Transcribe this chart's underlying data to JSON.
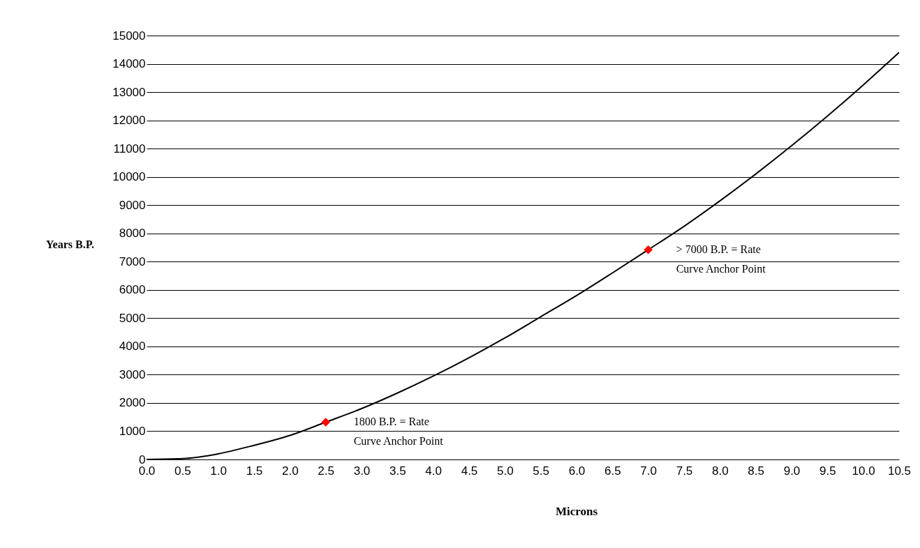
{
  "chart_data": {
    "type": "line",
    "xlabel": "Microns",
    "ylabel": "Years B.P.",
    "xlim": [
      0,
      10.5
    ],
    "xticks": [
      {
        "value": 0,
        "label": "0.0"
      },
      {
        "value": 0.5,
        "label": "0.5"
      },
      {
        "value": 1,
        "label": "1.0"
      },
      {
        "value": 1.5,
        "label": "1.5"
      },
      {
        "value": 2,
        "label": "2.0"
      },
      {
        "value": 2.5,
        "label": "2.5"
      },
      {
        "value": 3,
        "label": "3.0"
      },
      {
        "value": 3.5,
        "label": "3.5"
      },
      {
        "value": 4,
        "label": "4.0"
      },
      {
        "value": 4.5,
        "label": "4.5"
      },
      {
        "value": 5,
        "label": "5.0"
      },
      {
        "value": 5.5,
        "label": "5.5"
      },
      {
        "value": 6,
        "label": "6.0"
      },
      {
        "value": 6.5,
        "label": "6.5"
      },
      {
        "value": 7,
        "label": "7.0"
      },
      {
        "value": 7.5,
        "label": "7.5"
      },
      {
        "value": 8,
        "label": "8.0"
      },
      {
        "value": 8.5,
        "label": "8.5"
      },
      {
        "value": 9,
        "label": "9.0"
      },
      {
        "value": 9.5,
        "label": "9.5"
      },
      {
        "value": 10,
        "label": "10.0"
      },
      {
        "value": 10.5,
        "label": "10.5"
      }
    ],
    "ylim": [
      0,
      15000
    ],
    "yticks": [
      0,
      1000,
      2000,
      3000,
      4000,
      5000,
      6000,
      7000,
      8000,
      9000,
      10000,
      11000,
      12000,
      13000,
      14000,
      15000
    ],
    "grid": "y",
    "legend": false,
    "series": [
      {
        "color": "#000000",
        "marker": "none",
        "x": [
          0,
          0.5,
          1,
          1.5,
          2,
          2.5,
          3,
          3.5,
          4,
          4.5,
          5,
          5.5,
          6,
          6.5,
          7,
          7.5,
          8,
          8.5,
          9,
          9.5,
          10,
          10.5
        ],
        "values": [
          0,
          30,
          200,
          500,
          850,
          1320,
          1800,
          2350,
          2950,
          3600,
          4300,
          5050,
          5800,
          6600,
          7420,
          8250,
          9150,
          10100,
          11100,
          12150,
          13250,
          14400
        ]
      },
      {
        "type": "scatter",
        "name": "1800 B.P. = Rate Curve Anchor Point",
        "color": "#ff0000",
        "marker": "diamond",
        "x": [
          2.5
        ],
        "values": [
          1320
        ]
      },
      {
        "type": "scatter",
        "name": "> 7000 B.P. = Rate Curve Anchor Point",
        "color": "#ff0000",
        "marker": "diamond",
        "x": [
          7
        ],
        "values": [
          7420
        ]
      }
    ]
  }
}
